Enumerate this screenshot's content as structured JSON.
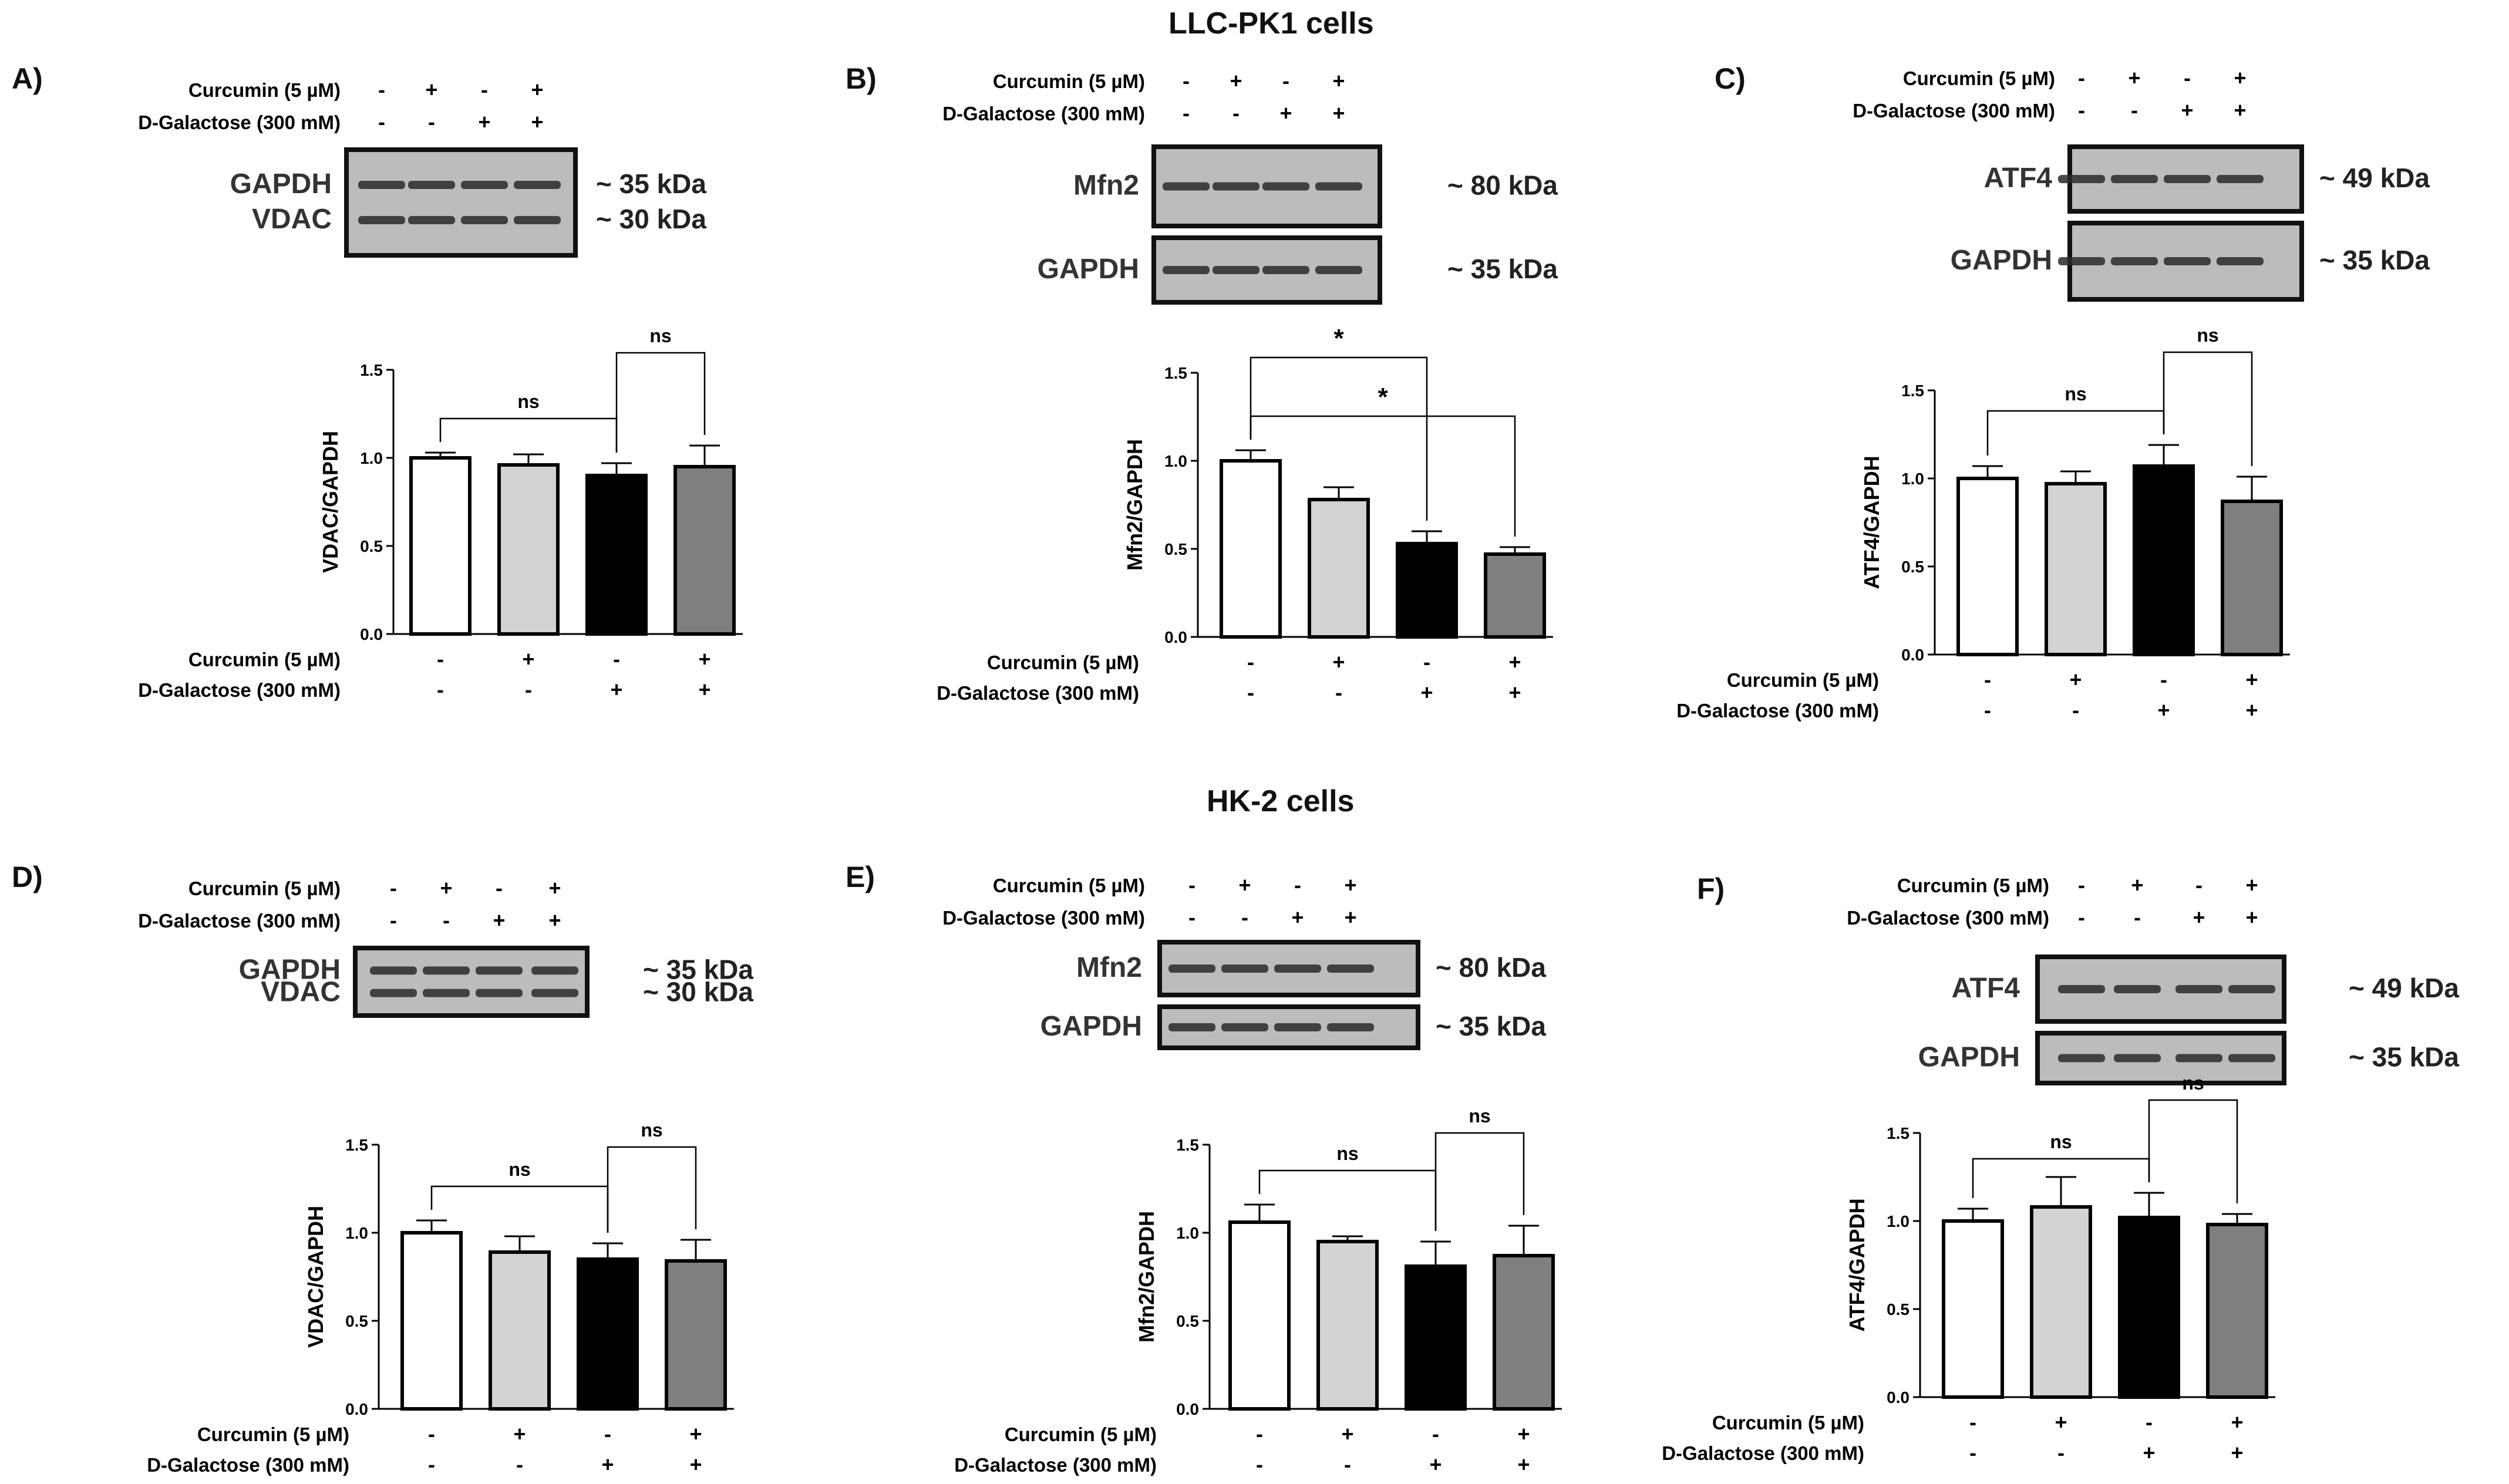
{
  "titles": {
    "llc": "LLC-PK1 cells",
    "hk2": "HK-2 cells"
  },
  "colors": {
    "bar": [
      "#ffffff",
      "#d3d3d3",
      "#000000",
      "#7f7f7f"
    ],
    "blot_bg": "#bcbcbc",
    "band": "#2a2a2a"
  },
  "chart_data": [
    {
      "panel": "A)",
      "group": "LLC-PK1 cells",
      "type": "bar",
      "ylabel": "VDAC/GAPDH",
      "ylim": [
        0,
        1.5
      ],
      "yticks": [
        "0.0",
        "0.5",
        "1.0",
        "1.5"
      ],
      "values": [
        1.0,
        0.96,
        0.9,
        0.95
      ],
      "errors": [
        0.03,
        0.06,
        0.07,
        0.12
      ],
      "treatments": [
        {
          "label": "Curcumin (5 µM)",
          "signs": [
            "-",
            "+",
            "-",
            "+"
          ]
        },
        {
          "label": "D-Galactose (300 mM)",
          "signs": [
            "-",
            "-",
            "+",
            "+"
          ]
        }
      ],
      "annotations": [
        {
          "text": "ns",
          "from": 0,
          "to": 2
        },
        {
          "text": "ns",
          "from": 2,
          "to": 3
        }
      ],
      "blot": {
        "rows": [
          {
            "labels": [
              "GAPDH",
              "VDAC"
            ],
            "sizes": [
              "~ 35 kDa",
              "~ 30 kDa"
            ]
          }
        ]
      }
    },
    {
      "panel": "B)",
      "group": "LLC-PK1 cells",
      "type": "bar",
      "ylabel": "Mfn2/GAPDH",
      "ylim": [
        0,
        1.5
      ],
      "yticks": [
        "0.0",
        "0.5",
        "1.0",
        "1.5"
      ],
      "values": [
        1.0,
        0.78,
        0.53,
        0.47
      ],
      "errors": [
        0.06,
        0.07,
        0.07,
        0.04
      ],
      "treatments": [
        {
          "label": "Curcumin (5 µM)",
          "signs": [
            "-",
            "+",
            "-",
            "+"
          ]
        },
        {
          "label": "D-Galactose (300 mM)",
          "signs": [
            "-",
            "-",
            "+",
            "+"
          ]
        }
      ],
      "annotations": [
        {
          "text": "*",
          "from": 0,
          "to": 3
        },
        {
          "text": "*",
          "from": 0,
          "to": 2
        }
      ],
      "blot": {
        "rows": [
          {
            "labels": [
              "Mfn2"
            ],
            "sizes": [
              "~ 80 kDa"
            ]
          },
          {
            "labels": [
              "GAPDH"
            ],
            "sizes": [
              "~ 35 kDa"
            ]
          }
        ]
      }
    },
    {
      "panel": "C)",
      "group": "LLC-PK1 cells",
      "type": "bar",
      "ylabel": "ATF4/GAPDH",
      "ylim": [
        0,
        1.5
      ],
      "yticks": [
        "0.0",
        "0.5",
        "1.0",
        "1.5"
      ],
      "values": [
        1.0,
        0.97,
        1.07,
        0.87
      ],
      "errors": [
        0.07,
        0.07,
        0.12,
        0.14
      ],
      "treatments": [
        {
          "label": "Curcumin (5 µM)",
          "signs": [
            "-",
            "+",
            "-",
            "+"
          ]
        },
        {
          "label": "D-Galactose (300 mM)",
          "signs": [
            "-",
            "-",
            "+",
            "+"
          ]
        }
      ],
      "annotations": [
        {
          "text": "ns",
          "from": 0,
          "to": 2
        },
        {
          "text": "ns",
          "from": 2,
          "to": 3
        }
      ],
      "blot": {
        "rows": [
          {
            "labels": [
              "ATF4"
            ],
            "sizes": [
              "~ 49 kDa"
            ]
          },
          {
            "labels": [
              "GAPDH"
            ],
            "sizes": [
              "~ 35 kDa"
            ]
          }
        ]
      }
    },
    {
      "panel": "D)",
      "group": "HK-2 cells",
      "type": "bar",
      "ylabel": "VDAC/GAPDH",
      "ylim": [
        0,
        1.5
      ],
      "yticks": [
        "0.0",
        "0.5",
        "1.0",
        "1.5"
      ],
      "values": [
        1.0,
        0.89,
        0.85,
        0.84
      ],
      "errors": [
        0.07,
        0.09,
        0.09,
        0.12
      ],
      "treatments": [
        {
          "label": "Curcumin (5 µM)",
          "signs": [
            "-",
            "+",
            "-",
            "+"
          ]
        },
        {
          "label": "D-Galactose (300 mM)",
          "signs": [
            "-",
            "-",
            "+",
            "+"
          ]
        }
      ],
      "annotations": [
        {
          "text": "ns",
          "from": 0,
          "to": 2
        },
        {
          "text": "ns",
          "from": 2,
          "to": 3
        }
      ],
      "blot": {
        "rows": [
          {
            "labels": [
              "GAPDH",
              "VDAC"
            ],
            "sizes": [
              "~ 35 kDa",
              "~ 30 kDa"
            ]
          }
        ]
      }
    },
    {
      "panel": "E)",
      "group": "HK-2 cells",
      "type": "bar",
      "ylabel": "Mfn2/GAPDH",
      "ylim": [
        0,
        1.5
      ],
      "yticks": [
        "0.0",
        "0.5",
        "1.0",
        "1.5"
      ],
      "values": [
        1.06,
        0.95,
        0.81,
        0.87
      ],
      "errors": [
        0.1,
        0.03,
        0.14,
        0.17
      ],
      "treatments": [
        {
          "label": "Curcumin (5 µM)",
          "signs": [
            "-",
            "+",
            "-",
            "+"
          ]
        },
        {
          "label": "D-Galactose (300 mM)",
          "signs": [
            "-",
            "-",
            "+",
            "+"
          ]
        }
      ],
      "annotations": [
        {
          "text": "ns",
          "from": 0,
          "to": 2
        },
        {
          "text": "ns",
          "from": 2,
          "to": 3
        }
      ],
      "blot": {
        "rows": [
          {
            "labels": [
              "Mfn2"
            ],
            "sizes": [
              "~ 80 kDa"
            ]
          },
          {
            "labels": [
              "GAPDH"
            ],
            "sizes": [
              "~ 35 kDa"
            ]
          }
        ]
      }
    },
    {
      "panel": "F)",
      "group": "HK-2 cells",
      "type": "bar",
      "ylabel": "ATF4/GAPDH",
      "ylim": [
        0,
        1.5
      ],
      "yticks": [
        "0.0",
        "0.5",
        "1.0",
        "1.5"
      ],
      "values": [
        1.0,
        1.08,
        1.02,
        0.98
      ],
      "errors": [
        0.07,
        0.17,
        0.14,
        0.06
      ],
      "treatments": [
        {
          "label": "Curcumin (5 µM)",
          "signs": [
            "-",
            "+",
            "-",
            "+"
          ]
        },
        {
          "label": "D-Galactose (300 mM)",
          "signs": [
            "-",
            "-",
            "+",
            "+"
          ]
        }
      ],
      "annotations": [
        {
          "text": "ns",
          "from": 0,
          "to": 2
        },
        {
          "text": "ns",
          "from": 2,
          "to": 3
        }
      ],
      "blot": {
        "rows": [
          {
            "labels": [
              "ATF4"
            ],
            "sizes": [
              "~ 49 kDa"
            ]
          },
          {
            "labels": [
              "GAPDH"
            ],
            "sizes": [
              "~ 35 kDa"
            ]
          }
        ]
      }
    }
  ]
}
